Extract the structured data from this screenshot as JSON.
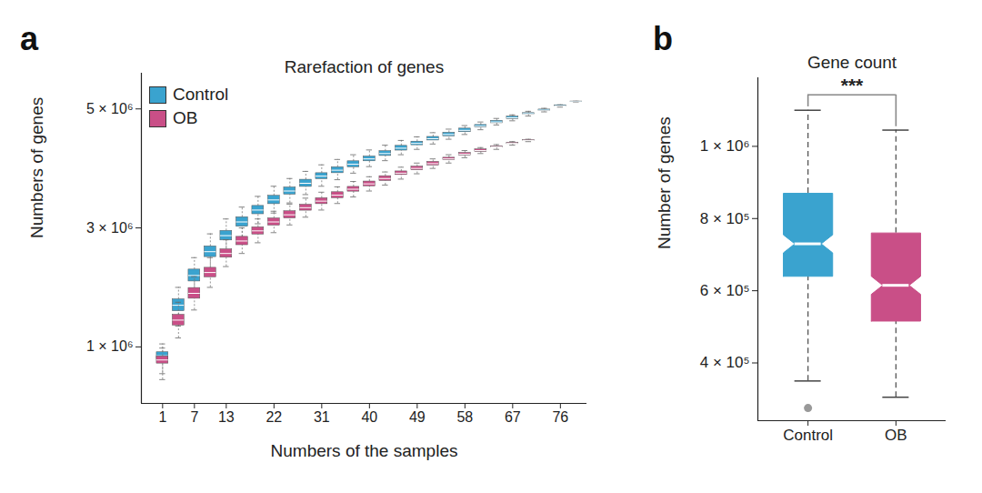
{
  "chart_data": [
    {
      "type": "box",
      "panel_label": "a",
      "title": "Rarefaction of genes",
      "x_label": "Numbers of the samples",
      "y_label": "Numbers of genes",
      "xlim": [
        -3,
        81
      ],
      "xticks": [
        1,
        7,
        13,
        22,
        31,
        40,
        49,
        58,
        67,
        76
      ],
      "ylim": [
        50000,
        5600000
      ],
      "yticks": [
        {
          "value": 1000000,
          "label": "1 × 10⁶"
        },
        {
          "value": 3000000,
          "label": "3 × 10⁶"
        },
        {
          "value": 5000000,
          "label": "5 × 10⁶"
        }
      ],
      "legend": "top-left",
      "series": [
        {
          "name": "Control",
          "color": "#3aa3cf",
          "x": [
            1,
            4,
            7,
            10,
            13,
            16,
            19,
            22,
            25,
            28,
            31,
            34,
            37,
            40,
            43,
            46,
            49,
            52,
            55,
            58,
            61,
            64,
            67,
            70,
            73,
            76,
            79
          ],
          "values": [
            850000,
            1700000,
            2200000,
            2600000,
            2870000,
            3100000,
            3300000,
            3470000,
            3620000,
            3750000,
            3870000,
            3970000,
            4070000,
            4160000,
            4250000,
            4340000,
            4420000,
            4500000,
            4570000,
            4640000,
            4710000,
            4780000,
            4850000,
            4920000,
            4980000,
            5050000,
            5120000
          ],
          "q1": [
            790000,
            1600000,
            2100000,
            2510000,
            2790000,
            3020000,
            3230000,
            3400000,
            3560000,
            3690000,
            3820000,
            3920000,
            4020000,
            4120000,
            4210000,
            4300000,
            4390000,
            4470000,
            4540000,
            4610000,
            4690000,
            4760000,
            4830000,
            4910000,
            4970000,
            5040000,
            5115000
          ],
          "q3": [
            910000,
            1800000,
            2300000,
            2690000,
            2950000,
            3180000,
            3370000,
            3540000,
            3680000,
            3810000,
            3920000,
            4020000,
            4120000,
            4200000,
            4290000,
            4380000,
            4450000,
            4530000,
            4600000,
            4670000,
            4730000,
            4800000,
            4870000,
            4930000,
            4990000,
            5060000,
            5125000
          ],
          "whisker_low": [
            550000,
            1350000,
            1900000,
            2300000,
            2600000,
            2850000,
            3070000,
            3250000,
            3420000,
            3560000,
            3700000,
            3810000,
            3920000,
            4030000,
            4130000,
            4230000,
            4320000,
            4410000,
            4490000,
            4570000,
            4650000,
            4730000,
            4800000,
            4880000,
            4950000,
            5030000,
            5110000
          ],
          "whisker_high": [
            1050000,
            2000000,
            2500000,
            2900000,
            3150000,
            3350000,
            3530000,
            3700000,
            3830000,
            3950000,
            4060000,
            4150000,
            4230000,
            4310000,
            4390000,
            4470000,
            4530000,
            4600000,
            4660000,
            4720000,
            4780000,
            4840000,
            4900000,
            4960000,
            5010000,
            5070000,
            5130000
          ]
        },
        {
          "name": "OB",
          "color": "#c94f87",
          "x": [
            1,
            4,
            7,
            10,
            13,
            16,
            19,
            22,
            25,
            28,
            31,
            34,
            37,
            40,
            43,
            46,
            49,
            52,
            55,
            58,
            61,
            64,
            67,
            70
          ],
          "values": [
            780000,
            1450000,
            1900000,
            2250000,
            2570000,
            2780000,
            2950000,
            3100000,
            3220000,
            3340000,
            3450000,
            3550000,
            3650000,
            3740000,
            3830000,
            3920000,
            4000000,
            4080000,
            4160000,
            4240000,
            4300000,
            4360000,
            4420000,
            4470000
          ],
          "q1": [
            720000,
            1360000,
            1810000,
            2170000,
            2500000,
            2710000,
            2890000,
            3040000,
            3160000,
            3290000,
            3400000,
            3500000,
            3610000,
            3700000,
            3790000,
            3890000,
            3970000,
            4050000,
            4140000,
            4220000,
            4280000,
            4350000,
            4410000,
            4465000
          ],
          "q3": [
            840000,
            1540000,
            1990000,
            2330000,
            2640000,
            2850000,
            3010000,
            3160000,
            3280000,
            3390000,
            3500000,
            3600000,
            3690000,
            3780000,
            3870000,
            3950000,
            4030000,
            4110000,
            4180000,
            4260000,
            4320000,
            4370000,
            4430000,
            4475000
          ],
          "whisker_low": [
            450000,
            1150000,
            1620000,
            2000000,
            2350000,
            2570000,
            2750000,
            2920000,
            3050000,
            3180000,
            3300000,
            3410000,
            3520000,
            3620000,
            3720000,
            3820000,
            3910000,
            4000000,
            4090000,
            4180000,
            4250000,
            4320000,
            4390000,
            4450000
          ],
          "whisker_high": [
            980000,
            1750000,
            2180000,
            2500000,
            2800000,
            3000000,
            3150000,
            3280000,
            3400000,
            3500000,
            3600000,
            3690000,
            3780000,
            3860000,
            3940000,
            4020000,
            4090000,
            4160000,
            4230000,
            4300000,
            4350000,
            4400000,
            4450000,
            4490000
          ]
        }
      ]
    },
    {
      "type": "box",
      "panel_label": "b",
      "title": "Gene count",
      "y_label": "Number of genes",
      "categories": [
        "Control",
        "OB"
      ],
      "colors": [
        "#3aa3cf",
        "#c94f87"
      ],
      "values": [
        730000,
        615000
      ],
      "q1": [
        640000,
        516000
      ],
      "q3": [
        870000,
        760000
      ],
      "notch_low": [
        705000,
        590000
      ],
      "notch_high": [
        755000,
        640000
      ],
      "whisker_low": [
        350000,
        305000
      ],
      "whisker_high": [
        1100000,
        1045000
      ],
      "outliers": [
        [
          275000
        ],
        []
      ],
      "ylim": [
        240000,
        1190000
      ],
      "yticks": [
        {
          "value": 400000,
          "label": "4 × 10⁵"
        },
        {
          "value": 600000,
          "label": "6 × 10⁵"
        },
        {
          "value": 800000,
          "label": "8 × 10⁵"
        },
        {
          "value": 1000000,
          "label": "1 × 10⁶"
        }
      ],
      "annotations": [
        "***"
      ]
    }
  ]
}
